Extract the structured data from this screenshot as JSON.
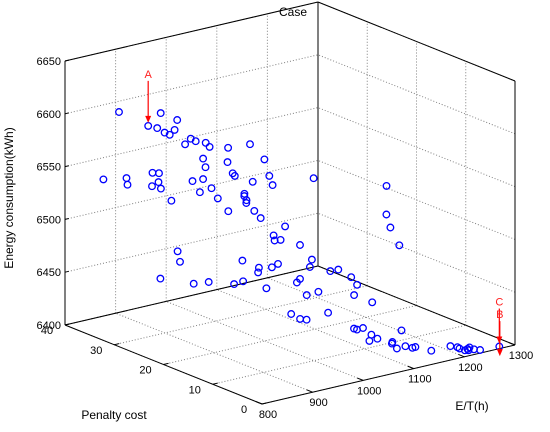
{
  "chart_data": {
    "type": "scatter",
    "title": "Case",
    "xlabel": "E/T(h)",
    "ylabel": "Penalty cost",
    "zlabel": "Energy consumption(kWh)",
    "xlim": [
      800,
      1300
    ],
    "ylim": [
      0,
      40
    ],
    "zlim": [
      6400,
      6650
    ],
    "x_ticks": [
      "800",
      "900",
      "1000",
      "1100",
      "1200",
      "1300"
    ],
    "y_ticks": [
      "0",
      "10",
      "20",
      "30",
      "40"
    ],
    "z_ticks": [
      "6400",
      "6450",
      "6500",
      "6550",
      "6600",
      "6650"
    ],
    "grid": true,
    "marker_color": "#0000ff",
    "annotation_color": "#ff0000",
    "points": [
      [
        896,
        38.9,
        6593
      ],
      [
        942,
        37.7,
        6577
      ],
      [
        953,
        37.0,
        6575
      ],
      [
        958,
        36.8,
        6589
      ],
      [
        969,
        35.1,
        6575
      ],
      [
        977,
        35.4,
        6583
      ],
      [
        958,
        36.0,
        6572
      ],
      [
        964,
        35.6,
        6570
      ],
      [
        988,
        33.8,
        6567
      ],
      [
        993,
        33.3,
        6565
      ],
      [
        1004,
        32.4,
        6564
      ],
      [
        980,
        34.1,
        6562
      ],
      [
        1006,
        31.8,
        6561
      ],
      [
        1017,
        29.3,
        6550
      ],
      [
        990,
        31.0,
        6545
      ],
      [
        994,
        31.9,
        6551
      ],
      [
        1023,
        29.8,
        6562
      ],
      [
        1045,
        27.6,
        6567
      ],
      [
        1052,
        25.4,
        6556
      ],
      [
        1046,
        23.8,
        6544
      ],
      [
        1013,
        27.4,
        6541
      ],
      [
        1002,
        26.7,
        6546
      ],
      [
        1001,
        23.8,
        6526
      ],
      [
        1020,
        24.5,
        6540
      ],
      [
        1038,
        22.3,
        6539
      ],
      [
        1081,
        18.4,
        6548
      ],
      [
        874,
        39.8,
        6530
      ],
      [
        907,
        38.5,
        6530
      ],
      [
        904,
        38.0,
        6525
      ],
      [
        930,
        35.7,
        6525
      ],
      [
        941,
        35.5,
        6528
      ],
      [
        936,
        36.2,
        6536
      ],
      [
        943,
        35.6,
        6536
      ],
      [
        937,
        34.6,
        6524
      ],
      [
        945,
        33.3,
        6514
      ],
      [
        980,
        32.6,
        6530
      ],
      [
        996,
        32.1,
        6531
      ],
      [
        998,
        30.6,
        6525
      ],
      [
        981,
        31.2,
        6522
      ],
      [
        994,
        28.9,
        6519
      ],
      [
        1025,
        26.7,
        6524
      ],
      [
        1021,
        26.3,
        6523
      ],
      [
        1025,
        26.3,
        6516
      ],
      [
        1030,
        25.2,
        6510
      ],
      [
        1000,
        27.4,
        6509
      ],
      [
        1050,
        21.0,
        6501
      ],
      [
        1151,
        10.8,
        6520
      ],
      [
        1158,
        11.5,
        6545
      ],
      [
        1032,
        24.1,
        6505
      ],
      [
        1037,
        22.0,
        6492
      ],
      [
        1039,
        22.0,
        6487
      ],
      [
        1045,
        21.4,
        6488
      ],
      [
        1060,
        19.0,
        6486
      ],
      [
        1069,
        17.5,
        6474
      ],
      [
        1063,
        17.3,
        6468
      ],
      [
        1036,
        21.0,
        6467
      ],
      [
        1155,
        10.4,
        6508
      ],
      [
        1160,
        9.1,
        6493
      ],
      [
        930,
        30.5,
        6473
      ],
      [
        930,
        30.0,
        6464
      ],
      [
        992,
        23.7,
        6470
      ],
      [
        1007,
        21.9,
        6465
      ],
      [
        1021,
        20.7,
        6466
      ],
      [
        1079,
        14.8,
        6467
      ],
      [
        1087,
        14.0,
        6469
      ],
      [
        1096,
        12.3,
        6464
      ],
      [
        1096,
        11.1,
        6459
      ],
      [
        1090,
        11.1,
        6450
      ],
      [
        1047,
        16.3,
        6445
      ],
      [
        1065,
        13.8,
        6431
      ],
      [
        1088,
        10.3,
        6419
      ],
      [
        1094,
        9.7,
        6421
      ],
      [
        1084,
        10.5,
        6420
      ],
      [
        1100,
        8.6,
        6416
      ],
      [
        1098,
        8.8,
        6410
      ],
      [
        1105,
        7.9,
        6413
      ],
      [
        1121,
        6.6,
        6409
      ],
      [
        1125,
        6.0,
        6405
      ],
      [
        1120,
        6.4,
        6411
      ],
      [
        1133,
        5.1,
        6408
      ],
      [
        1140,
        4.4,
        6407
      ],
      [
        1143,
        4.1,
        6408
      ],
      [
        1158,
        2.4,
        6406
      ],
      [
        1183,
        1.1,
        6410
      ],
      [
        1195,
        0.9,
        6408
      ],
      [
        1216,
        0.6,
        6406
      ],
      [
        1201,
        0.0,
        6406
      ],
      [
        1209,
        0.1,
        6405
      ],
      [
        1219,
        0.0,
        6405
      ],
      [
        1231,
        0.0,
        6403
      ],
      [
        1269,
        0.0,
        6402
      ],
      [
        1138,
        6.4,
        6420
      ],
      [
        1123,
        10.8,
        6440
      ],
      [
        1072,
        16.5,
        6445
      ],
      [
        1063,
        19.3,
        6453
      ],
      [
        1018,
        21.5,
        6445
      ],
      [
        1021,
        23.5,
        6456
      ],
      [
        1004,
        24.8,
        6447
      ],
      [
        994,
        25.6,
        6444
      ],
      [
        972,
        28.5,
        6443
      ],
      [
        958,
        30.1,
        6440
      ],
      [
        932,
        34.2,
        6440
      ],
      [
        1051,
        18.7,
        6452
      ],
      [
        1036,
        15.2,
        6425
      ],
      [
        1028,
        17.5,
        6427
      ],
      [
        1034,
        16.3,
        6424
      ],
      [
        1212,
        0.6,
        6405
      ],
      [
        1200,
        1.0,
        6406
      ]
    ],
    "annotations": [
      {
        "label": "A",
        "x": 942,
        "y": 37.7,
        "z": 6577
      },
      {
        "label": "C",
        "x": 1269,
        "y": 0.0,
        "z": 6402
      },
      {
        "label": "B",
        "x": 1270,
        "y": 0.0,
        "z": 6390
      }
    ]
  }
}
